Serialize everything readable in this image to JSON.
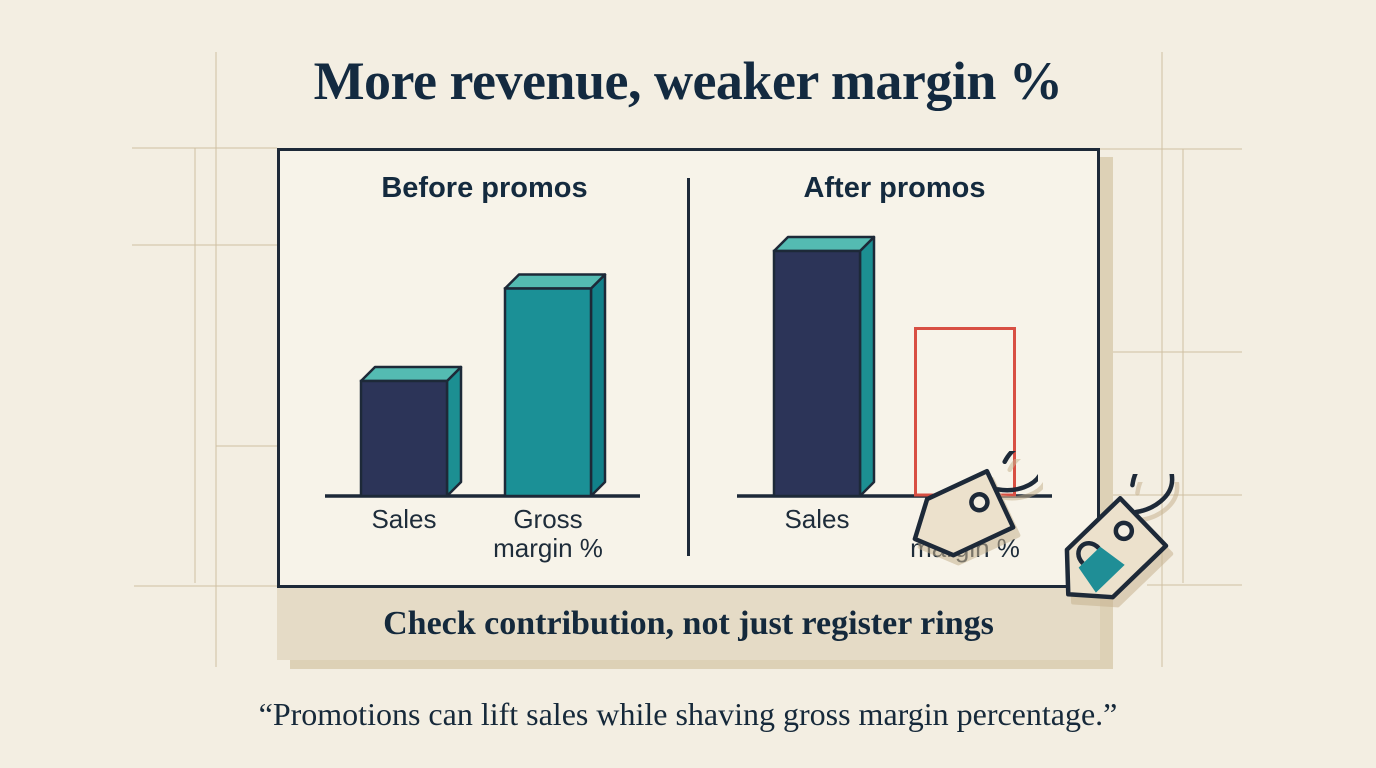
{
  "title": "More revenue, weaker margin %",
  "banner": {
    "text": "Check contribution, not just register rings"
  },
  "quote": {
    "text": "“Promotions can lift sales while shaving gross margin percentage.”"
  },
  "chart_data": {
    "type": "bar",
    "title": "More revenue, weaker margin %",
    "categories": [
      "Sales",
      "Gross margin %"
    ],
    "panels": [
      {
        "heading": "Before promos",
        "bars": [
          {
            "category": "Sales",
            "value": 46,
            "style": "solid-navy"
          },
          {
            "category": "Gross margin %",
            "value": 83,
            "style": "solid-teal"
          }
        ]
      },
      {
        "heading": "After promos",
        "bars": [
          {
            "category": "Sales",
            "value": 98,
            "style": "solid-navy"
          },
          {
            "category": "Gross margin %",
            "value": 67,
            "style": "outline-red"
          }
        ]
      }
    ],
    "value_units": "relative bar height, 0–100 (no numeric axis shown)",
    "ylim": [
      0,
      100
    ],
    "grid": false,
    "legend": "none",
    "notes": "After-promos 'Gross margin %' is drawn as an empty red outline to show the hollowed-out margin; solid bars are 3D blocks."
  },
  "colors": {
    "background": "#f3eee2",
    "panel_bg": "#f7f3e9",
    "panel_border": "#1d2938",
    "bar_navy": "#2c3458",
    "bar_teal": "#1b9096",
    "bar_top": "#54bbb2",
    "bar_side_navy_bar": "#1c8f92",
    "bar_side_teal_bar": "#11818a",
    "outline_red": "#d84f43",
    "banner_bg": "#e5dbc6",
    "text_dark": "#142a3e",
    "tag_fill": "#ece1cc",
    "bag_teal": "#1f8e96",
    "shadow_tan": "#ddd1b6"
  },
  "icons": {
    "center_tag": "price-tag-icon",
    "corner_tag": "price-tag-shopping-bag-icon"
  }
}
